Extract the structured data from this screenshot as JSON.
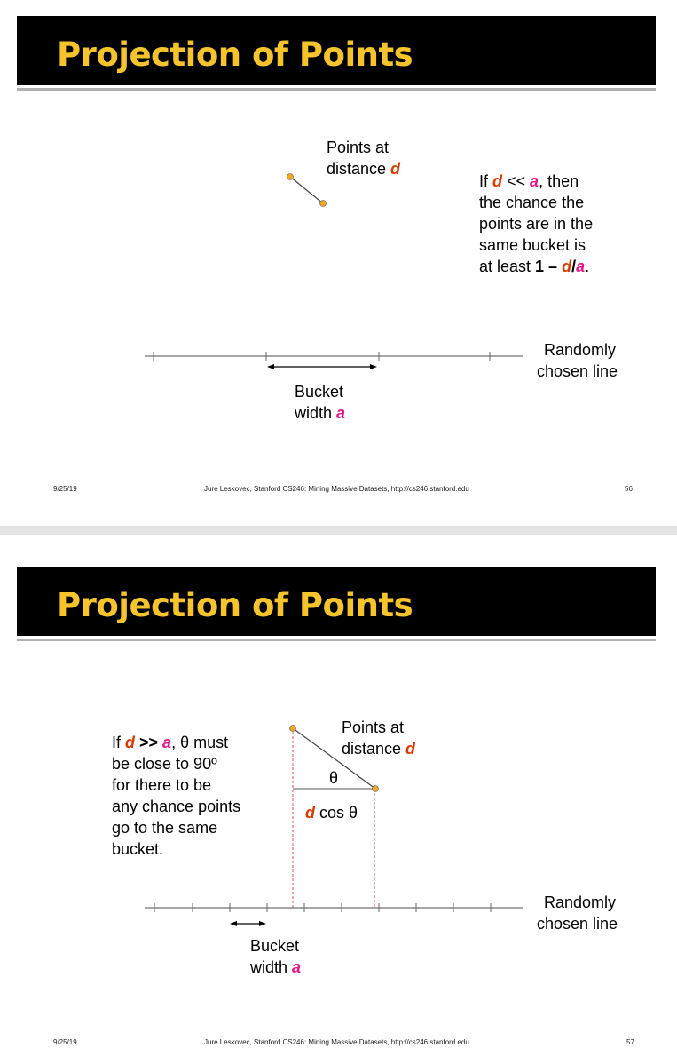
{
  "slide1": {
    "title": "Projection of Points",
    "points_label": [
      "Points at",
      "distance "
    ],
    "d": "d",
    "a": "a",
    "if": "If ",
    "lt": " << ",
    "then": ", then",
    "cond_line2": "the chance the",
    "cond_line3": "points are in the",
    "cond_line4": "same bucket is",
    "cond_line5a": "at least ",
    "one_minus": "1 –",
    "slash": "/",
    "period": ".",
    "line_label": [
      "Randomly",
      "chosen line"
    ],
    "bucket_label": [
      "Bucket",
      "width "
    ],
    "footer_date": "9/25/19",
    "footer_center": "Jure Leskovec, Stanford CS246: Mining Massive Datasets, http://cs246.stanford.edu",
    "footer_page": "56"
  },
  "slide2": {
    "title": "Projection of Points",
    "if": "If ",
    "gt": " >> ",
    "theta_must": ", θ must",
    "cond_line2": "be close to 90º",
    "cond_line3": "for there to be",
    "cond_line4": "any chance points",
    "cond_line5": "go to the same",
    "cond_line6": "bucket.",
    "d": "d",
    "a": "a",
    "points_label": [
      "Points at",
      "distance "
    ],
    "theta": "θ",
    "cos_theta": " cos θ",
    "line_label": [
      "Randomly",
      "chosen line"
    ],
    "bucket_label": [
      "Bucket",
      "width "
    ],
    "footer_date": "9/25/19",
    "footer_center": "Jure Leskovec, Stanford CS246: Mining Massive Datasets, http://cs246.stanford.edu",
    "footer_page": "57"
  },
  "colors": {
    "title_text": "#f5c32c",
    "d_red": "#d83b01",
    "a_magenta": "#e6148c",
    "point_orange": "#f5a623",
    "dashed_red": "#e05050"
  }
}
